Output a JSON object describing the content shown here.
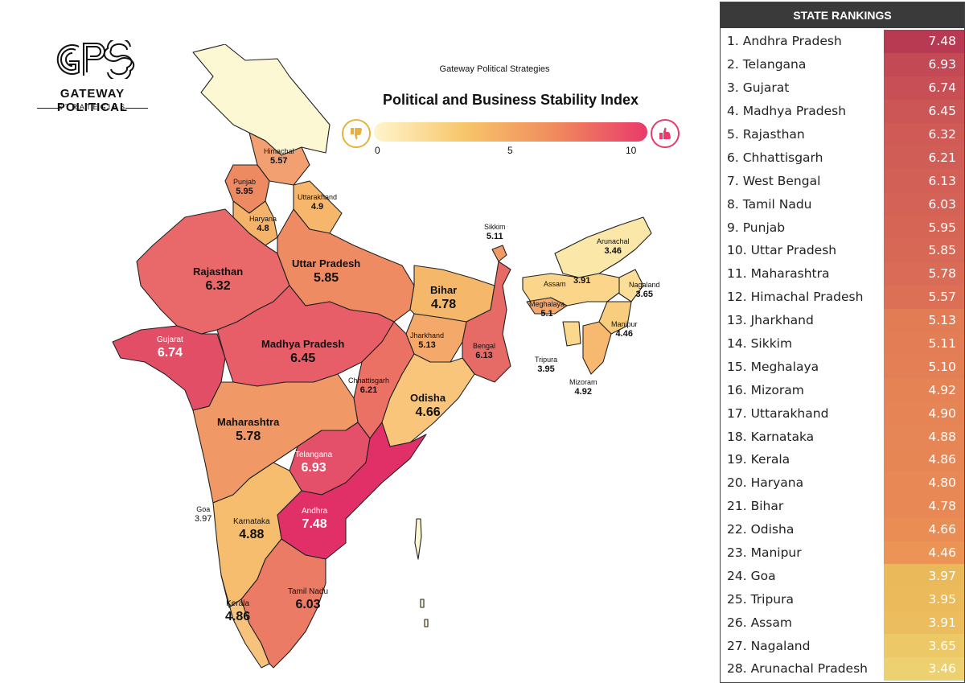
{
  "logo": {
    "mark": "GPS",
    "line1": "GATEWAY POLITICAL",
    "line2": "STRATEGIES"
  },
  "map_header": {
    "publisher": "Gateway Political Strategies",
    "title": "Political and Business Stability Index"
  },
  "legend": {
    "ticks": [
      "0",
      "5",
      "10"
    ],
    "low_icon": "thumbs-down-icon",
    "high_icon": "thumbs-up-icon",
    "colors": [
      "#fff5cc",
      "#f7c56a",
      "#f08a5d",
      "#e93a6a"
    ]
  },
  "color_scale": {
    "low": "#fbf3c2",
    "mid": "#f0a56b",
    "high": "#e23a68"
  },
  "map_labels": {
    "himachal": {
      "name": "Himachal",
      "value": "5.57"
    },
    "punjab": {
      "name": "Punjab",
      "value": "5.95"
    },
    "uttarakhand": {
      "name": "Uttarakhand",
      "value": "4.9"
    },
    "haryana": {
      "name": "Haryana",
      "value": "4.8"
    },
    "rajasthan": {
      "name": "Rajasthan",
      "value": "6.32"
    },
    "uttar_pradesh": {
      "name": "Uttar Pradesh",
      "value": "5.85"
    },
    "bihar": {
      "name": "Bihar",
      "value": "4.78"
    },
    "sikkim": {
      "name": "Sikkim",
      "value": "5.11"
    },
    "arunachal": {
      "name": "Arunachal",
      "value": "3.46"
    },
    "assam": {
      "name": "Assam",
      "value": "3.91"
    },
    "nagaland": {
      "name": "Nagaland",
      "value": "3.65"
    },
    "meghalaya": {
      "name": "Meghalaya",
      "value": "5.1"
    },
    "manipur": {
      "name": "Manipur",
      "value": "4.46"
    },
    "tripura": {
      "name": "Tripura",
      "value": "3.95"
    },
    "mizoram": {
      "name": "Mizoram",
      "value": "4.92"
    },
    "gujarat": {
      "name": "Gujarat",
      "value": "6.74"
    },
    "madhya_pradesh": {
      "name": "Madhya Pradesh",
      "value": "6.45"
    },
    "jharkhand": {
      "name": "Jharkhand",
      "value": "5.13"
    },
    "bengal": {
      "name": "Bengal",
      "value": "6.13"
    },
    "chhattisgarh": {
      "name": "Chhattisgarh",
      "value": "6.21"
    },
    "odisha": {
      "name": "Odisha",
      "value": "4.66"
    },
    "maharashtra": {
      "name": "Maharashtra",
      "value": "5.78"
    },
    "telangana": {
      "name": "Telangana",
      "value": "6.93"
    },
    "goa": {
      "name": "Goa",
      "value": "3.97"
    },
    "karnataka": {
      "name": "Karnataka",
      "value": "4.88"
    },
    "andhra": {
      "name": "Andhra",
      "value": "7.48"
    },
    "kerala": {
      "name": "Kerala",
      "value": "4.86"
    },
    "tamil_nadu": {
      "name": "Tamil Nadu",
      "value": "6.03"
    }
  },
  "rankings": {
    "title": "STATE RANKINGS",
    "rows": [
      {
        "label": "1. Andhra Pradesh",
        "score": "7.48",
        "color": "#b83a52"
      },
      {
        "label": "2. Telangana",
        "score": "6.93",
        "color": "#c34a55"
      },
      {
        "label": "3. Gujarat",
        "score": "6.74",
        "color": "#c84f56"
      },
      {
        "label": "4. Madhya Pradesh",
        "score": "6.45",
        "color": "#cc5656"
      },
      {
        "label": "5. Rajasthan",
        "score": "6.32",
        "color": "#cf5a56"
      },
      {
        "label": "6. Chhattisgarh",
        "score": "6.21",
        "color": "#d05d56"
      },
      {
        "label": "7. West Bengal",
        "score": "6.13",
        "color": "#d26056"
      },
      {
        "label": "8. Tamil Nadu",
        "score": "6.03",
        "color": "#d46256"
      },
      {
        "label": "9. Punjab",
        "score": "5.95",
        "color": "#d66556"
      },
      {
        "label": "10. Uttar Pradesh",
        "score": "5.85",
        "color": "#d86856"
      },
      {
        "label": "11. Maharashtra",
        "score": "5.78",
        "color": "#da6b56"
      },
      {
        "label": "12. Himachal Pradesh",
        "score": "5.57",
        "color": "#dc7056"
      },
      {
        "label": "13. Jharkhand",
        "score": "5.13",
        "color": "#e27c55"
      },
      {
        "label": "14. Sikkim",
        "score": "5.11",
        "color": "#e37d55"
      },
      {
        "label": "15. Meghalaya",
        "score": "5.10",
        "color": "#e37e55"
      },
      {
        "label": "16. Mizoram",
        "score": "4.92",
        "color": "#e58355"
      },
      {
        "label": "17. Uttarakhand",
        "score": "4.90",
        "color": "#e68455"
      },
      {
        "label": "18. Karnataka",
        "score": "4.88",
        "color": "#e68555"
      },
      {
        "label": "19. Kerala",
        "score": "4.86",
        "color": "#e78655"
      },
      {
        "label": "20. Haryana",
        "score": "4.80",
        "color": "#e88855"
      },
      {
        "label": "21. Bihar",
        "score": "4.78",
        "color": "#e88955"
      },
      {
        "label": "22. Odisha",
        "score": "4.66",
        "color": "#ea8d55"
      },
      {
        "label": "23. Manipur",
        "score": "4.46",
        "color": "#ec9456"
      },
      {
        "label": "24. Goa",
        "score": "3.97",
        "color": "#e9b95a"
      },
      {
        "label": "25. Tripura",
        "score": "3.95",
        "color": "#eaba5b"
      },
      {
        "label": "26. Assam",
        "score": "3.91",
        "color": "#ebbd5e"
      },
      {
        "label": "27. Nagaland",
        "score": "3.65",
        "color": "#ecc867"
      },
      {
        "label": "28. Arunachal Pradesh",
        "score": "3.46",
        "color": "#edd070"
      }
    ]
  }
}
